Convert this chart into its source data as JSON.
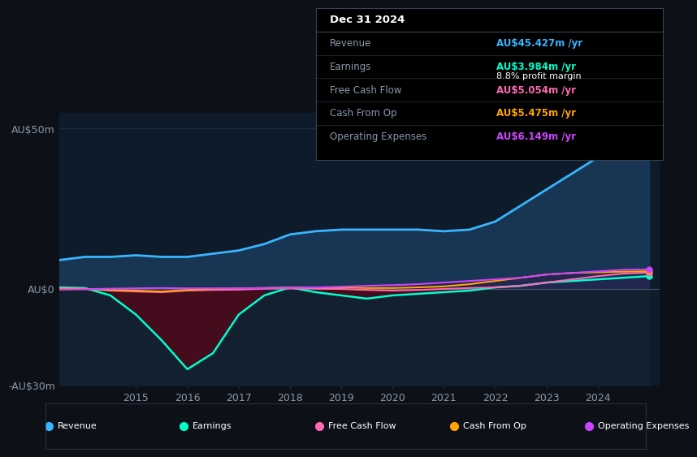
{
  "background_color": "#0d1117",
  "chart_bg_color": "#0d1b2a",
  "grid_color": "#1e2d3d",
  "text_color": "#8899aa",
  "years": [
    2013.5,
    2014,
    2014.5,
    2015,
    2015.5,
    2016,
    2016.5,
    2017,
    2017.5,
    2018,
    2018.5,
    2019,
    2019.5,
    2020,
    2020.5,
    2021,
    2021.5,
    2022,
    2022.5,
    2023,
    2023.5,
    2024,
    2024.5,
    2025.0
  ],
  "revenue": [
    9,
    10,
    10,
    10.5,
    10,
    10,
    11,
    12,
    14,
    17,
    18,
    18.5,
    18.5,
    18.5,
    18.5,
    18,
    18.5,
    21,
    26,
    31,
    36,
    41,
    44,
    45.5
  ],
  "earnings": [
    0.5,
    0.3,
    -2,
    -8,
    -16,
    -25,
    -20,
    -8,
    -2,
    0.5,
    -1,
    -2,
    -3,
    -2,
    -1.5,
    -1,
    -0.5,
    0.5,
    1,
    2,
    2.5,
    3,
    3.5,
    4.0
  ],
  "fcf": [
    0.2,
    0.1,
    -0.5,
    -0.8,
    -1.0,
    -0.5,
    -0.3,
    -0.2,
    0.1,
    0.2,
    0.1,
    0.0,
    -0.3,
    -0.5,
    -0.3,
    0,
    0.3,
    0.5,
    1,
    2,
    3,
    4,
    4.8,
    5.1
  ],
  "cash_from_op": [
    0.1,
    0.0,
    -0.3,
    -0.5,
    -0.8,
    -0.3,
    0.0,
    0.2,
    0.3,
    0.5,
    0.5,
    0.5,
    0.3,
    0.3,
    0.5,
    0.8,
    1.5,
    2.5,
    3.5,
    4.5,
    5.0,
    5.2,
    5.4,
    5.5
  ],
  "op_expenses": [
    -0.2,
    -0.1,
    0.1,
    0.2,
    0.3,
    0.2,
    0.2,
    0.2,
    0.3,
    0.4,
    0.5,
    0.7,
    1.0,
    1.2,
    1.5,
    2.0,
    2.5,
    3.0,
    3.5,
    4.5,
    5.0,
    5.5,
    6.0,
    6.1
  ],
  "revenue_color": "#38b6ff",
  "revenue_fill": "#1a3a5c",
  "earnings_color": "#00ffcc",
  "earnings_fill": "#4a0a1a",
  "fcf_color": "#ff69b4",
  "cash_from_op_color": "#ffa500",
  "op_expenses_color": "#cc44ff",
  "op_expenses_fill": "#2a1a4a",
  "ylim": [
    -30,
    55
  ],
  "yticks": [
    -30,
    0,
    50
  ],
  "ytick_labels": [
    "-AU$30m",
    "AU$0",
    "AU$50m"
  ],
  "xlim": [
    2013.5,
    2025.2
  ],
  "xtick_years": [
    2015,
    2016,
    2017,
    2018,
    2019,
    2020,
    2021,
    2022,
    2023,
    2024
  ],
  "info_box": {
    "date": "Dec 31 2024",
    "rows": [
      {
        "label": "Revenue",
        "value": "AU$45.427m /yr",
        "value_color": "#38b6ff",
        "extra": null
      },
      {
        "label": "Earnings",
        "value": "AU$3.984m /yr",
        "value_color": "#00ffcc",
        "extra": "8.8% profit margin"
      },
      {
        "label": "Free Cash Flow",
        "value": "AU$5.054m /yr",
        "value_color": "#ff69b4",
        "extra": null
      },
      {
        "label": "Cash From Op",
        "value": "AU$5.475m /yr",
        "value_color": "#ffa500",
        "extra": null
      },
      {
        "label": "Operating Expenses",
        "value": "AU$6.149m /yr",
        "value_color": "#cc44ff",
        "extra": null
      }
    ]
  },
  "legend": [
    {
      "label": "Revenue",
      "color": "#38b6ff"
    },
    {
      "label": "Earnings",
      "color": "#00ffcc"
    },
    {
      "label": "Free Cash Flow",
      "color": "#ff69b4"
    },
    {
      "label": "Cash From Op",
      "color": "#ffa500"
    },
    {
      "label": "Operating Expenses",
      "color": "#cc44ff"
    }
  ]
}
